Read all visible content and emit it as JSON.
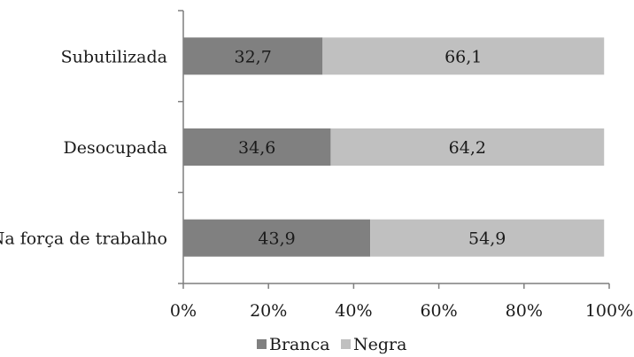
{
  "chart_data": {
    "type": "bar",
    "orientation": "horizontal",
    "stacked": true,
    "categories": [
      "Subutilizada",
      "Desocupada",
      "Na força de trabalho"
    ],
    "series": [
      {
        "name": "Branca",
        "values": [
          32.7,
          34.6,
          43.9
        ],
        "labels": [
          "32,7",
          "34,6",
          "43,9"
        ],
        "color": "#808080"
      },
      {
        "name": "Negra",
        "values": [
          66.1,
          64.2,
          54.9
        ],
        "labels": [
          "66,1",
          "64,2",
          "54,9"
        ],
        "color": "#c0c0c0"
      }
    ],
    "xlim": [
      0,
      100
    ],
    "xticks": [
      "0%",
      "20%",
      "40%",
      "60%",
      "80%",
      "100%"
    ],
    "grid": false,
    "legend_position": "bottom"
  }
}
